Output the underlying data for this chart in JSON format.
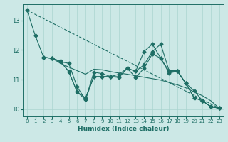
{
  "xlabel": "Humidex (Indice chaleur)",
  "bg_color": "#cce8e6",
  "line_color": "#1e6e65",
  "grid_color": "#aad4d0",
  "xlim": [
    -0.5,
    23.5
  ],
  "ylim": [
    9.75,
    13.55
  ],
  "xticks": [
    0,
    1,
    2,
    3,
    4,
    5,
    6,
    7,
    8,
    9,
    10,
    11,
    12,
    13,
    14,
    15,
    16,
    17,
    18,
    19,
    20,
    21,
    22,
    23
  ],
  "yticks": [
    10,
    11,
    12,
    13
  ],
  "trend_x": [
    0,
    23
  ],
  "trend_y": [
    13.35,
    10.03
  ],
  "line1_x": [
    0,
    1,
    2,
    3,
    4,
    5,
    6,
    7,
    8,
    9,
    10,
    11,
    12,
    13,
    14,
    15,
    16,
    17,
    18,
    19,
    20,
    21,
    22,
    23
  ],
  "line1_y": [
    13.35,
    12.48,
    11.75,
    11.72,
    11.62,
    11.27,
    10.58,
    10.38,
    11.1,
    11.1,
    11.1,
    11.18,
    11.38,
    11.28,
    11.95,
    12.2,
    11.72,
    11.28,
    11.28,
    10.87,
    10.38,
    10.28,
    10.08,
    10.03
  ],
  "line2_x": [
    2,
    3,
    4,
    5,
    6,
    7,
    8,
    9,
    10,
    11,
    12,
    13,
    14,
    15,
    16,
    17,
    18,
    19,
    20,
    21,
    22,
    23
  ],
  "line2_y": [
    11.75,
    11.72,
    11.6,
    11.55,
    10.75,
    10.32,
    11.25,
    11.2,
    11.1,
    11.1,
    11.38,
    11.28,
    11.5,
    11.95,
    12.2,
    11.3,
    11.3,
    10.87,
    10.38,
    10.28,
    10.08,
    10.03
  ],
  "line3_x": [
    2,
    3,
    4,
    5,
    6,
    7,
    8,
    9,
    10,
    11,
    12,
    13,
    14,
    15,
    16,
    17,
    18,
    19,
    20,
    21,
    22,
    23
  ],
  "line3_y": [
    11.75,
    11.72,
    11.62,
    11.27,
    10.58,
    10.32,
    11.1,
    11.1,
    11.1,
    11.07,
    11.38,
    11.07,
    11.38,
    11.87,
    11.72,
    11.22,
    11.28,
    10.87,
    10.62,
    10.28,
    10.08,
    10.03
  ],
  "line4_x": [
    2,
    3,
    4,
    5,
    6,
    7,
    8,
    9,
    10,
    11,
    12,
    13,
    14,
    15,
    16,
    17,
    18,
    19,
    20,
    21,
    22,
    23
  ],
  "line4_y": [
    11.75,
    11.72,
    11.55,
    11.42,
    11.3,
    11.18,
    11.35,
    11.33,
    11.27,
    11.22,
    11.18,
    11.13,
    11.08,
    11.03,
    10.98,
    10.9,
    10.82,
    10.72,
    10.58,
    10.45,
    10.28,
    10.03
  ]
}
